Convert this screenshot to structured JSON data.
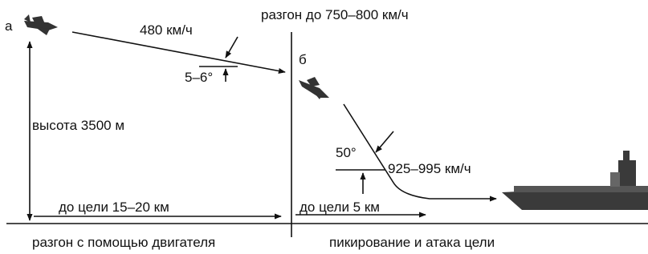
{
  "panels": [
    {
      "label": "а",
      "speed": "480 км/ч",
      "angle": "5–6°",
      "altitude": "высота 3500 м",
      "distance": "до цели 15–20 км",
      "caption": "разгон с помощью двигателя"
    },
    {
      "label": "б",
      "top_note": "разгон до 750–800 км/ч",
      "angle": "50°",
      "speed": "925–995 км/ч",
      "distance": "до цели 5 км",
      "caption": "пикирование и атака цели"
    }
  ]
}
